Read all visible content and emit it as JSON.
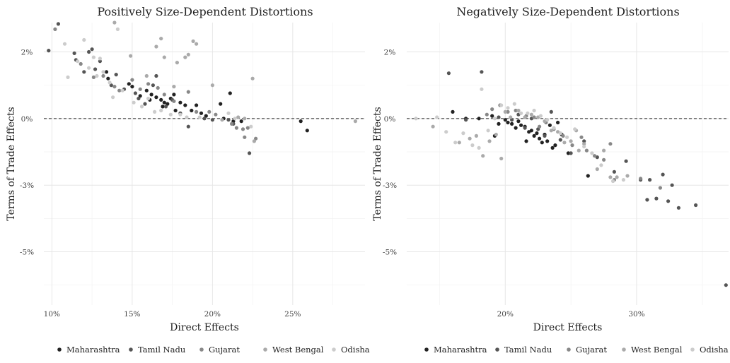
{
  "chart_data": [
    {
      "type": "scatter",
      "title": "Positively Size-Dependent Distortions",
      "xlabel": "Direct Effects",
      "ylabel": "Terms of Trade Effects",
      "xlim": [
        9.5,
        29.5
      ],
      "ylim": [
        -7.0,
        3.6
      ],
      "x_ticks": [
        10,
        15,
        20,
        25
      ],
      "x_tick_labels": [
        "10%",
        "15%",
        "20%",
        "25%"
      ],
      "y_ticks": [
        2.5,
        0,
        -2.5,
        -5
      ],
      "y_tick_labels": [
        "2%",
        "0%",
        "-3%",
        "-5%"
      ],
      "reference_line_y": 0,
      "grid": true,
      "legend_position": "bottom",
      "series": [
        {
          "name": "Maharashtra",
          "color": "#222222",
          "points": [
            [
              13.4,
              1.75
            ],
            [
              13.5,
              1.5
            ],
            [
              14.8,
              1.3
            ],
            [
              15.0,
              1.2
            ],
            [
              15.5,
              0.85
            ],
            [
              15.9,
              1.05
            ],
            [
              16.2,
              0.9
            ],
            [
              16.5,
              0.8
            ],
            [
              16.8,
              0.7
            ],
            [
              17.0,
              0.6
            ],
            [
              17.2,
              0.55
            ],
            [
              17.4,
              0.75
            ],
            [
              17.6,
              0.9
            ],
            [
              18.0,
              0.6
            ],
            [
              18.3,
              0.5
            ],
            [
              18.7,
              0.3
            ],
            [
              19.0,
              0.5
            ],
            [
              19.3,
              0.2
            ],
            [
              19.6,
              0.1
            ],
            [
              20.5,
              0.55
            ],
            [
              20.7,
              0.0
            ],
            [
              21.1,
              0.95
            ],
            [
              21.3,
              -0.1
            ],
            [
              21.8,
              -0.1
            ],
            [
              25.5,
              -0.1
            ],
            [
              25.9,
              -0.45
            ],
            [
              16.1,
              0.7
            ],
            [
              16.9,
              0.45
            ],
            [
              17.7,
              0.3
            ]
          ]
        },
        {
          "name": "Tamil Nadu",
          "color": "#555555",
          "points": [
            [
              9.8,
              2.55
            ],
            [
              10.4,
              3.55
            ],
            [
              11.4,
              2.45
            ],
            [
              11.5,
              2.2
            ],
            [
              12.0,
              1.75
            ],
            [
              12.3,
              2.5
            ],
            [
              12.5,
              2.6
            ],
            [
              13.0,
              2.15
            ],
            [
              13.7,
              1.25
            ],
            [
              14.0,
              1.65
            ],
            [
              14.5,
              1.1
            ],
            [
              15.2,
              0.95
            ],
            [
              15.8,
              0.55
            ],
            [
              16.3,
              1.25
            ],
            [
              16.5,
              1.6
            ],
            [
              17.1,
              0.45
            ],
            [
              17.5,
              0.7
            ],
            [
              18.0,
              0.2
            ],
            [
              18.5,
              -0.3
            ],
            [
              19.5,
              0.0
            ],
            [
              20.0,
              -0.05
            ],
            [
              21.0,
              -0.05
            ],
            [
              21.3,
              -0.2
            ],
            [
              22.3,
              -1.3
            ],
            [
              12.7,
              1.85
            ],
            [
              15.4,
              0.75
            ]
          ]
        },
        {
          "name": "Gujarat",
          "color": "#888888",
          "points": [
            [
              10.2,
              3.35
            ],
            [
              11.8,
              2.05
            ],
            [
              12.6,
              1.55
            ],
            [
              13.2,
              1.6
            ],
            [
              13.9,
              1.2
            ],
            [
              14.2,
              1.05
            ],
            [
              15.0,
              1.45
            ],
            [
              15.5,
              1.1
            ],
            [
              16.0,
              1.3
            ],
            [
              16.6,
              1.15
            ],
            [
              17.0,
              0.9
            ],
            [
              17.6,
              0.65
            ],
            [
              18.5,
              1.0
            ],
            [
              19.0,
              0.25
            ],
            [
              19.8,
              0.25
            ],
            [
              20.2,
              0.15
            ],
            [
              21.2,
              -0.2
            ],
            [
              21.5,
              -0.35
            ],
            [
              21.9,
              -0.4
            ],
            [
              22.0,
              -0.7
            ],
            [
              22.2,
              -0.35
            ],
            [
              22.7,
              -0.75
            ]
          ]
        },
        {
          "name": "West Bengal",
          "color": "#aaaaaa",
          "points": [
            [
              13.9,
              3.6
            ],
            [
              14.9,
              2.35
            ],
            [
              15.9,
              1.6
            ],
            [
              16.5,
              2.7
            ],
            [
              16.8,
              3.0
            ],
            [
              17.0,
              2.3
            ],
            [
              17.8,
              2.1
            ],
            [
              18.3,
              2.3
            ],
            [
              18.5,
              2.4
            ],
            [
              18.8,
              2.9
            ],
            [
              19.0,
              2.8
            ],
            [
              20.0,
              1.25
            ],
            [
              20.6,
              -0.05
            ],
            [
              21.6,
              0.05
            ],
            [
              22.0,
              0.0
            ],
            [
              22.5,
              1.5
            ],
            [
              22.6,
              -0.85
            ],
            [
              28.9,
              -0.1
            ],
            [
              17.6,
              1.2
            ]
          ]
        },
        {
          "name": "Odisha",
          "color": "#cccccc",
          "points": [
            [
              10.8,
              2.8
            ],
            [
              11.0,
              1.55
            ],
            [
              11.6,
              2.15
            ],
            [
              12.0,
              2.95
            ],
            [
              12.6,
              2.3
            ],
            [
              12.8,
              1.6
            ],
            [
              13.0,
              2.25
            ],
            [
              13.2,
              1.75
            ],
            [
              13.6,
              1.35
            ],
            [
              13.8,
              0.8
            ],
            [
              14.1,
              3.35
            ],
            [
              14.4,
              1.05
            ],
            [
              15.1,
              0.6
            ],
            [
              15.6,
              0.45
            ],
            [
              16.0,
              0.75
            ],
            [
              16.4,
              0.25
            ],
            [
              16.8,
              0.3
            ],
            [
              17.4,
              0.15
            ],
            [
              18.0,
              0.15
            ],
            [
              18.4,
              0.05
            ],
            [
              19.2,
              0.05
            ],
            [
              21.0,
              0.2
            ],
            [
              21.4,
              0.0
            ],
            [
              22.4,
              -0.3
            ],
            [
              12.3,
              1.9
            ]
          ]
        }
      ]
    },
    {
      "type": "scatter",
      "title": "Negatively Size-Dependent Distortions",
      "xlabel": "Direct Effects",
      "ylabel": "Terms of Trade Effects",
      "xlim": [
        12.5,
        37.0
      ],
      "ylim": [
        -7.0,
        3.6
      ],
      "x_ticks": [
        20,
        30
      ],
      "x_tick_labels": [
        "20%",
        "30%"
      ],
      "y_ticks": [
        2.5,
        0,
        -2.5,
        -5
      ],
      "y_tick_labels": [
        "2%",
        "0%",
        "-3%",
        "-5%"
      ],
      "reference_line_y": 0,
      "grid": true,
      "legend_position": "bottom",
      "series": [
        {
          "name": "Maharashtra",
          "color": "#222222",
          "points": [
            [
              16.0,
              0.25
            ],
            [
              17.0,
              0.0
            ],
            [
              18.0,
              0.0
            ],
            [
              19.0,
              0.1
            ],
            [
              19.5,
              -0.2
            ],
            [
              20.0,
              -0.05
            ],
            [
              20.2,
              -0.15
            ],
            [
              20.5,
              -0.2
            ],
            [
              20.8,
              -0.35
            ],
            [
              21.0,
              -0.1
            ],
            [
              21.2,
              -0.25
            ],
            [
              21.5,
              -0.3
            ],
            [
              21.8,
              -0.5
            ],
            [
              22.0,
              -0.45
            ],
            [
              22.2,
              -0.65
            ],
            [
              22.4,
              -0.55
            ],
            [
              22.6,
              -0.75
            ],
            [
              22.8,
              -0.9
            ],
            [
              23.0,
              -0.6
            ],
            [
              23.2,
              -0.85
            ],
            [
              23.4,
              -0.25
            ],
            [
              23.6,
              -1.1
            ],
            [
              23.8,
              -1.0
            ],
            [
              24.0,
              -0.15
            ],
            [
              24.3,
              -0.6
            ],
            [
              24.8,
              -1.3
            ],
            [
              26.3,
              -2.15
            ],
            [
              19.2,
              -0.65
            ],
            [
              21.6,
              -0.85
            ]
          ]
        },
        {
          "name": "Tamil Nadu",
          "color": "#555555",
          "points": [
            [
              15.7,
              1.7
            ],
            [
              17.0,
              -0.05
            ],
            [
              18.2,
              1.75
            ],
            [
              19.5,
              0.05
            ],
            [
              20.5,
              -0.05
            ],
            [
              21.0,
              0.15
            ],
            [
              21.5,
              -0.35
            ],
            [
              22.0,
              0.0
            ],
            [
              22.5,
              -0.4
            ],
            [
              23.0,
              -0.65
            ],
            [
              23.5,
              0.25
            ],
            [
              24.2,
              -0.8
            ],
            [
              25.0,
              -1.3
            ],
            [
              26.0,
              -0.85
            ],
            [
              27.0,
              -1.45
            ],
            [
              28.3,
              -2.0
            ],
            [
              29.2,
              -1.6
            ],
            [
              30.3,
              -2.3
            ],
            [
              30.8,
              -3.05
            ],
            [
              31.0,
              -2.3
            ],
            [
              31.5,
              -3.0
            ],
            [
              32.0,
              -2.1
            ],
            [
              32.4,
              -3.1
            ],
            [
              32.7,
              -2.5
            ],
            [
              33.2,
              -3.35
            ],
            [
              34.5,
              -3.25
            ],
            [
              36.8,
              -6.25
            ]
          ]
        },
        {
          "name": "Gujarat",
          "color": "#888888",
          "points": [
            [
              19.0,
              0.35
            ],
            [
              19.6,
              0.5
            ],
            [
              20.2,
              0.25
            ],
            [
              20.8,
              0.3
            ],
            [
              21.6,
              0.1
            ],
            [
              22.2,
              0.05
            ],
            [
              22.6,
              -0.3
            ],
            [
              23.1,
              -0.15
            ],
            [
              23.7,
              -0.4
            ],
            [
              24.4,
              -0.65
            ],
            [
              25.1,
              -1.0
            ],
            [
              25.8,
              -0.7
            ],
            [
              26.2,
              -1.2
            ],
            [
              26.8,
              -1.4
            ],
            [
              27.5,
              -1.55
            ],
            [
              28.0,
              -0.95
            ],
            [
              28.3,
              -2.3
            ],
            [
              30.3,
              -2.25
            ],
            [
              31.8,
              -2.6
            ],
            [
              18.6,
              0.15
            ]
          ]
        },
        {
          "name": "West Bengal",
          "color": "#aaaaaa",
          "points": [
            [
              14.5,
              -0.3
            ],
            [
              16.5,
              -0.9
            ],
            [
              17.3,
              -0.75
            ],
            [
              17.8,
              -0.65
            ],
            [
              18.3,
              -1.4
            ],
            [
              18.8,
              -0.85
            ],
            [
              19.3,
              -0.6
            ],
            [
              19.7,
              -1.5
            ],
            [
              20.0,
              0.25
            ],
            [
              20.4,
              0.05
            ],
            [
              21.0,
              0.3
            ],
            [
              21.5,
              0.05
            ],
            [
              22.0,
              0.15
            ],
            [
              22.5,
              0.05
            ],
            [
              23.0,
              -0.1
            ],
            [
              23.5,
              -0.45
            ],
            [
              24.0,
              -0.5
            ],
            [
              24.5,
              -0.9
            ],
            [
              25.0,
              -0.85
            ],
            [
              25.4,
              -0.45
            ],
            [
              26.0,
              -0.95
            ],
            [
              27.0,
              -1.9
            ],
            [
              27.5,
              -1.2
            ],
            [
              28.0,
              -2.2
            ],
            [
              28.5,
              -2.2
            ],
            [
              29.3,
              -2.15
            ],
            [
              25.6,
              -1.2
            ]
          ]
        },
        {
          "name": "Odisha",
          "color": "#cccccc",
          "points": [
            [
              13.2,
              0.0
            ],
            [
              14.8,
              0.05
            ],
            [
              15.5,
              -0.5
            ],
            [
              16.2,
              -0.9
            ],
            [
              16.8,
              -0.55
            ],
            [
              17.5,
              -1.0
            ],
            [
              18.0,
              -1.1
            ],
            [
              18.2,
              1.1
            ],
            [
              18.7,
              -0.45
            ],
            [
              19.2,
              0.0
            ],
            [
              19.7,
              0.5
            ],
            [
              20.2,
              0.4
            ],
            [
              20.7,
              0.55
            ],
            [
              21.2,
              0.2
            ],
            [
              21.7,
              0.2
            ],
            [
              22.2,
              0.3
            ],
            [
              22.7,
              0.1
            ],
            [
              23.2,
              -0.05
            ],
            [
              23.7,
              -0.35
            ],
            [
              24.2,
              -0.55
            ],
            [
              24.7,
              -0.7
            ],
            [
              25.3,
              -0.4
            ],
            [
              26.0,
              -1.05
            ],
            [
              26.6,
              -1.3
            ],
            [
              27.3,
              -1.75
            ],
            [
              28.2,
              -2.35
            ],
            [
              29.0,
              -2.3
            ]
          ]
        }
      ]
    }
  ]
}
